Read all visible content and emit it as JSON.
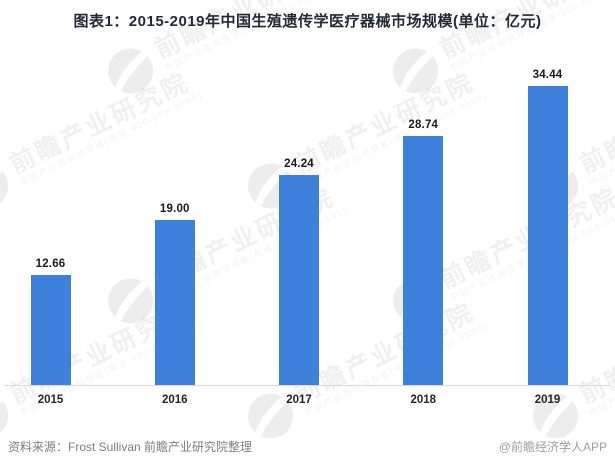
{
  "title": "图表1：2015-2019年中国生殖遗传学医疗器械市场规模(单位：亿元)",
  "chart_data": {
    "type": "bar",
    "title": "图表1：2015-2019年中国生殖遗传学医疗器械市场规模(单位：亿元)",
    "unit": "亿元",
    "categories": [
      "2015",
      "2016",
      "2017",
      "2018",
      "2019"
    ],
    "values": [
      12.66,
      19.0,
      24.24,
      28.74,
      34.44
    ],
    "value_labels": [
      "12.66",
      "19.00",
      "24.24",
      "28.74",
      "34.44"
    ],
    "xlabel": "",
    "ylabel": "",
    "ylim": [
      0,
      40
    ],
    "gridlines": false,
    "legend_position": "none",
    "data_labels_position": "above-bars",
    "bar_color": "#3e81dd",
    "axis_line_color": "#d9d9d9"
  },
  "footer": {
    "source_label": "资料来源：Frost Sullivan 前瞻产业研究院整理",
    "brand_label": "@前瞻经济学人APP"
  },
  "watermark": {
    "logo": "qianzhan-swoosh-circle-logo",
    "brand_text": "前瞻产业研究院",
    "sub_text": "中国产业咨询领导者(电话:400-068-9599)"
  },
  "colors": {
    "background": "#ffffff",
    "bar": "#3e81dd",
    "title_text": "#222a35",
    "value_label_text": "#1a1a1a",
    "axis_line": "#d9d9d9",
    "source_text": "#7f7f7f",
    "brand_text": "#a0a0a0"
  }
}
